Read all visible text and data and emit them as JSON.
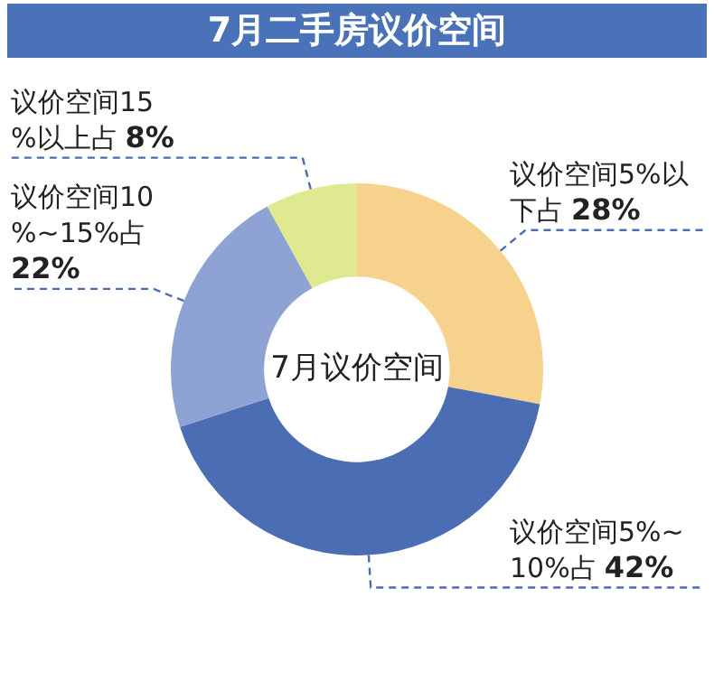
{
  "chart_data": {
    "type": "donut",
    "title": "7月二手房议价空间",
    "categories": [
      "议价空间5%以下占",
      "议价空间5%~10%占",
      "议价空间10%~15%占",
      "议价空间15%以上占"
    ],
    "values": [
      28,
      42,
      22,
      8
    ],
    "value_labels": [
      "28%",
      "42%",
      "22%",
      "8%"
    ],
    "colors": [
      "#f6d28c",
      "#4a6db3",
      "#8ea3d3",
      "#dfe98f"
    ],
    "annotations": [
      "7月议价空间"
    ],
    "legend": false
  }
}
